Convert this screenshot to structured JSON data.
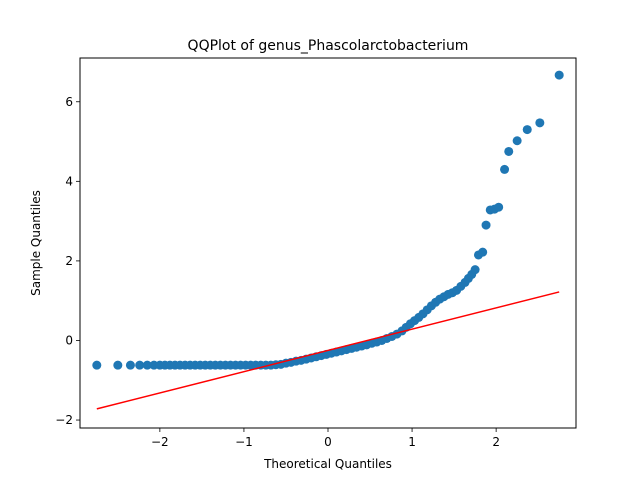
{
  "chart_data": {
    "type": "scatter",
    "title": "QQPlot of genus_Phascolarctobacterium",
    "xlabel": "Theoretical Quantiles",
    "ylabel": "Sample Quantiles",
    "xlim": [
      -2.95,
      2.95
    ],
    "ylim": [
      -2.2,
      7.1
    ],
    "xticks": [
      -2,
      -1,
      0,
      1,
      2
    ],
    "yticks": [
      -2,
      0,
      2,
      4,
      6
    ],
    "grid": false,
    "colors": {
      "points": "#1f77b4",
      "line": "#ff0000"
    },
    "series": [
      {
        "type": "scatter",
        "points": [
          [
            -2.75,
            -0.62
          ],
          [
            -2.5,
            -0.62
          ],
          [
            -2.35,
            -0.62
          ],
          [
            -2.24,
            -0.62
          ],
          [
            -2.15,
            -0.62
          ],
          [
            -2.07,
            -0.62
          ],
          [
            -2.0,
            -0.62
          ],
          [
            -1.94,
            -0.62
          ],
          [
            -1.88,
            -0.62
          ],
          [
            -1.82,
            -0.62
          ],
          [
            -1.76,
            -0.62
          ],
          [
            -1.7,
            -0.62
          ],
          [
            -1.64,
            -0.62
          ],
          [
            -1.58,
            -0.62
          ],
          [
            -1.52,
            -0.62
          ],
          [
            -1.46,
            -0.62
          ],
          [
            -1.4,
            -0.62
          ],
          [
            -1.34,
            -0.62
          ],
          [
            -1.28,
            -0.62
          ],
          [
            -1.22,
            -0.62
          ],
          [
            -1.16,
            -0.62
          ],
          [
            -1.1,
            -0.62
          ],
          [
            -1.04,
            -0.62
          ],
          [
            -0.98,
            -0.62
          ],
          [
            -0.92,
            -0.62
          ],
          [
            -0.86,
            -0.62
          ],
          [
            -0.8,
            -0.62
          ],
          [
            -0.74,
            -0.62
          ],
          [
            -0.68,
            -0.62
          ],
          [
            -0.62,
            -0.61
          ],
          [
            -0.56,
            -0.6
          ],
          [
            -0.5,
            -0.57
          ],
          [
            -0.44,
            -0.55
          ],
          [
            -0.38,
            -0.52
          ],
          [
            -0.32,
            -0.5
          ],
          [
            -0.26,
            -0.47
          ],
          [
            -0.2,
            -0.44
          ],
          [
            -0.14,
            -0.41
          ],
          [
            -0.08,
            -0.38
          ],
          [
            -0.02,
            -0.35
          ],
          [
            0.04,
            -0.32
          ],
          [
            0.1,
            -0.29
          ],
          [
            0.16,
            -0.26
          ],
          [
            0.22,
            -0.23
          ],
          [
            0.28,
            -0.2
          ],
          [
            0.34,
            -0.17
          ],
          [
            0.4,
            -0.14
          ],
          [
            0.46,
            -0.11
          ],
          [
            0.52,
            -0.07
          ],
          [
            0.58,
            -0.04
          ],
          [
            0.64,
            0.0
          ],
          [
            0.7,
            0.05
          ],
          [
            0.76,
            0.1
          ],
          [
            0.82,
            0.16
          ],
          [
            0.88,
            0.24
          ],
          [
            0.93,
            0.33
          ],
          [
            0.98,
            0.42
          ],
          [
            1.03,
            0.5
          ],
          [
            1.08,
            0.58
          ],
          [
            1.13,
            0.67
          ],
          [
            1.18,
            0.77
          ],
          [
            1.23,
            0.87
          ],
          [
            1.28,
            0.96
          ],
          [
            1.33,
            1.04
          ],
          [
            1.38,
            1.1
          ],
          [
            1.43,
            1.16
          ],
          [
            1.48,
            1.2
          ],
          [
            1.53,
            1.26
          ],
          [
            1.58,
            1.36
          ],
          [
            1.63,
            1.46
          ],
          [
            1.67,
            1.56
          ],
          [
            1.71,
            1.66
          ],
          [
            1.75,
            1.78
          ],
          [
            1.79,
            2.15
          ],
          [
            1.84,
            2.22
          ],
          [
            1.88,
            2.9
          ],
          [
            1.93,
            3.28
          ],
          [
            1.98,
            3.3
          ],
          [
            2.03,
            3.35
          ],
          [
            2.1,
            4.3
          ],
          [
            2.15,
            4.75
          ],
          [
            2.25,
            5.02
          ],
          [
            2.37,
            5.3
          ],
          [
            2.52,
            5.47
          ],
          [
            2.75,
            6.67
          ]
        ]
      },
      {
        "type": "line",
        "points": [
          [
            -2.75,
            -1.72
          ],
          [
            2.75,
            1.22
          ]
        ]
      }
    ]
  }
}
